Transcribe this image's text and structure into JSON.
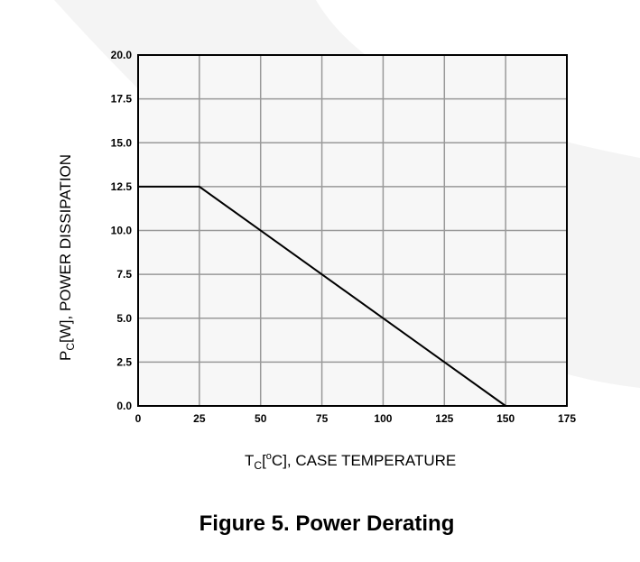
{
  "chart_data": {
    "type": "line",
    "title": "Figure 5. Power Derating",
    "xlabel": [
      "T",
      "C",
      "[",
      "o",
      "C], CASE TEMPERATURE"
    ],
    "ylabel": [
      "P",
      "C",
      "[W], POWER DISSIPATION"
    ],
    "series": [
      {
        "color": "#000000",
        "x": [
          0,
          25,
          150
        ],
        "values": [
          12.5,
          12.5,
          0
        ]
      }
    ],
    "xlim": [
      0,
      175
    ],
    "xticks": [
      0,
      25,
      50,
      75,
      100,
      125,
      150,
      175
    ],
    "ylim": [
      0,
      20
    ],
    "yticks": [
      {
        "value": 0,
        "label": "0.0"
      },
      2.5,
      {
        "value": 5,
        "label": "5.0"
      },
      7.5,
      {
        "value": 10,
        "label": "10.0"
      },
      12.5,
      {
        "value": 15,
        "label": "15.0"
      },
      17.5,
      {
        "value": 20,
        "label": "20.0"
      }
    ],
    "grid": true
  }
}
